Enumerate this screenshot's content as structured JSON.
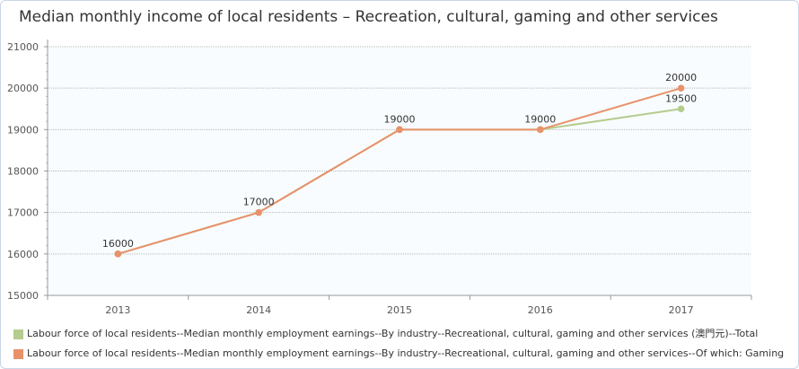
{
  "chart_data": {
    "type": "line",
    "title": "Median monthly income of local residents – Recreation, cultural, gaming and other services",
    "categories": [
      "2013",
      "2014",
      "2015",
      "2016",
      "2017"
    ],
    "ylim": [
      15000,
      21000
    ],
    "yticks": [
      15000,
      16000,
      17000,
      18000,
      19000,
      20000,
      21000
    ],
    "grid": true,
    "legend_placement": "bottom",
    "series": [
      {
        "name": "Labour force of local residents--Median monthly employment earnings--By industry--Recreational, cultural, gaming and other services (澳門元)--Total",
        "color": "#b5cc8e",
        "values": [
          16000,
          17000,
          19000,
          19000,
          19500
        ]
      },
      {
        "name": "Labour force of local residents--Median monthly employment earnings--By industry--Recreational, cultural, gaming and other services--Of which: Gaming",
        "color": "#e8916a",
        "values": [
          16000,
          17000,
          19000,
          19000,
          20000
        ]
      }
    ],
    "data_labels": [
      {
        "category": "2013",
        "value": 16000,
        "text": "16000"
      },
      {
        "category": "2014",
        "value": 17000,
        "text": "17000"
      },
      {
        "category": "2015",
        "value": 19000,
        "text": "19000"
      },
      {
        "category": "2016",
        "value": 19000,
        "text": "19000"
      },
      {
        "category": "2017",
        "value": 20000,
        "text": "20000"
      },
      {
        "category": "2017",
        "value": 19500,
        "text": "19500"
      }
    ]
  }
}
